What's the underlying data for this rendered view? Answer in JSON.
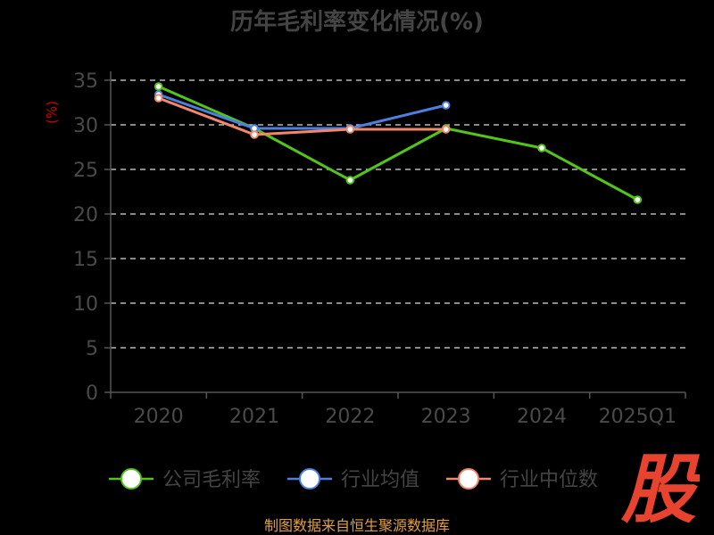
{
  "chart_data": {
    "type": "line",
    "title": "历年毛利率变化情况(%)",
    "ylabel": "(%)",
    "categories": [
      "2020",
      "2021",
      "2022",
      "2023",
      "2024",
      "2025Q1"
    ],
    "yticks": [
      "0",
      "5",
      "10",
      "15",
      "20",
      "25",
      "30",
      "35"
    ],
    "ylim": [
      0,
      35
    ],
    "grid": true,
    "legend_position": "bottom",
    "series": [
      {
        "name": "公司毛利率",
        "color": "#52c41a",
        "values": [
          34.3,
          29.6,
          23.8,
          29.6,
          27.4,
          21.6
        ]
      },
      {
        "name": "行业均值",
        "color": "#4e7fe0",
        "values": [
          33.4,
          29.6,
          29.6,
          32.2,
          null,
          null
        ]
      },
      {
        "name": "行业中位数",
        "color": "#f4876a",
        "values": [
          33.0,
          28.9,
          29.5,
          29.5,
          null,
          null
        ]
      }
    ]
  },
  "source_note": "制图数据来自恒生聚源数据库",
  "watermark_char": "股",
  "colors": {
    "background": "#000000",
    "title": "#444444",
    "axis": "#555555",
    "tick_label": "#4a4a4a",
    "grid": "#dddddd",
    "ylabel": "#cc0000",
    "legend_text": "#444444",
    "source": "#e0a040",
    "watermark": "#e8432e"
  }
}
